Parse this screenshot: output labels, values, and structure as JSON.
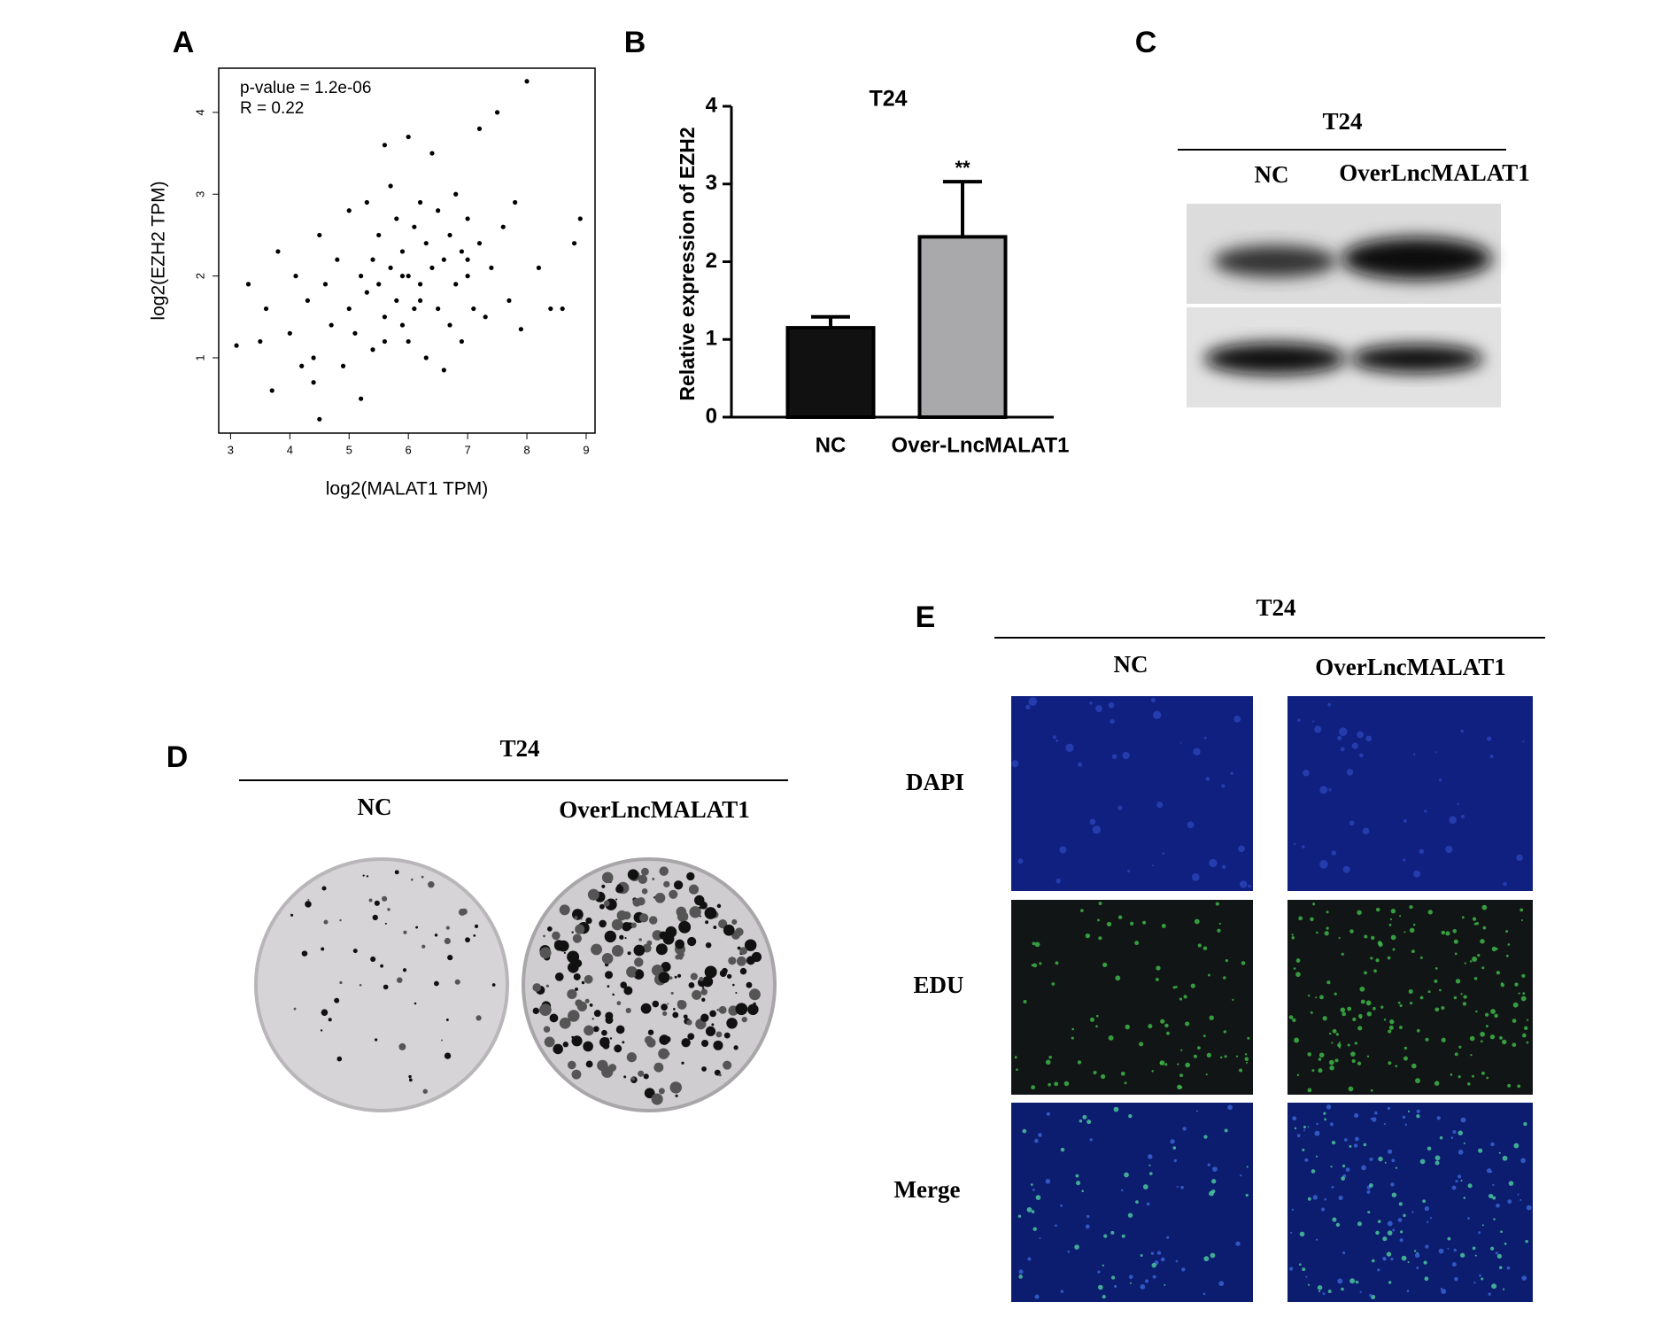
{
  "chart_data": [
    {
      "type": "scatter",
      "annotations": [
        "p-value = 1.2e-06",
        "R = 0.22"
      ],
      "x_label": "log2(MALAT1 TPM)",
      "y_label": "log2(EZH2 TPM)",
      "color": "#000000",
      "x": [
        3.1,
        3.3,
        3.5,
        3.6,
        3.7,
        3.8,
        4.0,
        4.1,
        4.2,
        4.3,
        4.4,
        4.5,
        4.5,
        4.6,
        4.7,
        4.8,
        4.9,
        5.0,
        5.0,
        5.1,
        5.2,
        5.2,
        5.3,
        5.3,
        5.4,
        5.4,
        5.5,
        5.5,
        5.6,
        5.6,
        5.7,
        5.7,
        5.8,
        5.8,
        5.9,
        5.9,
        6.0,
        6.0,
        6.0,
        6.1,
        6.1,
        6.2,
        6.2,
        6.3,
        6.3,
        6.4,
        6.4,
        6.5,
        6.5,
        6.6,
        6.6,
        6.7,
        6.7,
        6.8,
        6.8,
        6.9,
        6.9,
        7.0,
        7.0,
        7.1,
        7.2,
        7.2,
        7.3,
        7.4,
        7.5,
        7.6,
        7.7,
        7.8,
        7.9,
        8.0,
        8.2,
        8.4,
        8.6,
        8.8,
        8.9,
        4.4,
        5.6,
        6.2,
        7.0,
        5.9
      ],
      "values": [
        1.15,
        1.9,
        1.2,
        1.6,
        0.6,
        2.3,
        1.3,
        2.0,
        0.9,
        1.7,
        0.7,
        2.5,
        0.25,
        1.9,
        1.4,
        2.2,
        0.9,
        1.6,
        2.8,
        1.3,
        2.0,
        0.5,
        1.8,
        2.9,
        1.1,
        2.2,
        1.9,
        2.5,
        3.6,
        1.5,
        2.1,
        3.1,
        1.7,
        2.7,
        1.4,
        2.3,
        3.7,
        2.0,
        1.2,
        2.6,
        1.6,
        2.9,
        1.9,
        1.0,
        2.4,
        2.1,
        3.5,
        1.6,
        2.8,
        2.2,
        0.85,
        2.5,
        1.4,
        1.9,
        3.0,
        2.3,
        1.2,
        2.0,
        2.7,
        1.6,
        2.4,
        3.8,
        1.5,
        2.1,
        4.0,
        2.6,
        1.7,
        2.9,
        1.35,
        4.38,
        2.1,
        1.6,
        1.6,
        2.4,
        2.7,
        1.0,
        1.2,
        1.7,
        2.2,
        2.0
      ],
      "xlim": [
        2.8,
        9.15
      ],
      "xticks": [
        3,
        4,
        5,
        6,
        7,
        8,
        9
      ],
      "ylim": [
        0.08,
        4.54
      ],
      "yticks": [
        1,
        2,
        3,
        4
      ]
    },
    {
      "type": "bar",
      "title": "T24",
      "y_label": "Relative  expression of EZH2",
      "categories": [
        "NC",
        "Over-LncMALAT1"
      ],
      "values": [
        1.15,
        2.32
      ],
      "errors": [
        0.14,
        0.71
      ],
      "colors": [
        "#111111",
        "#a9a9ab"
      ],
      "significance": [
        null,
        "**"
      ],
      "ylim": [
        0,
        4
      ],
      "yticks": [
        0,
        1,
        2,
        3,
        4
      ]
    }
  ],
  "panel_labels": [
    "A",
    "B",
    "C",
    "D",
    "E"
  ],
  "panel_c": {
    "title": "T24",
    "columns": [
      "NC",
      "OverLncMALAT1"
    ]
  },
  "panel_d": {
    "title": "T24",
    "columns": [
      "NC",
      "OverLncMALAT1"
    ]
  },
  "panel_e": {
    "title": "T24",
    "columns": [
      "NC",
      "OverLncMALAT1"
    ],
    "rows": [
      "DAPI",
      "EDU",
      "Merge"
    ]
  }
}
